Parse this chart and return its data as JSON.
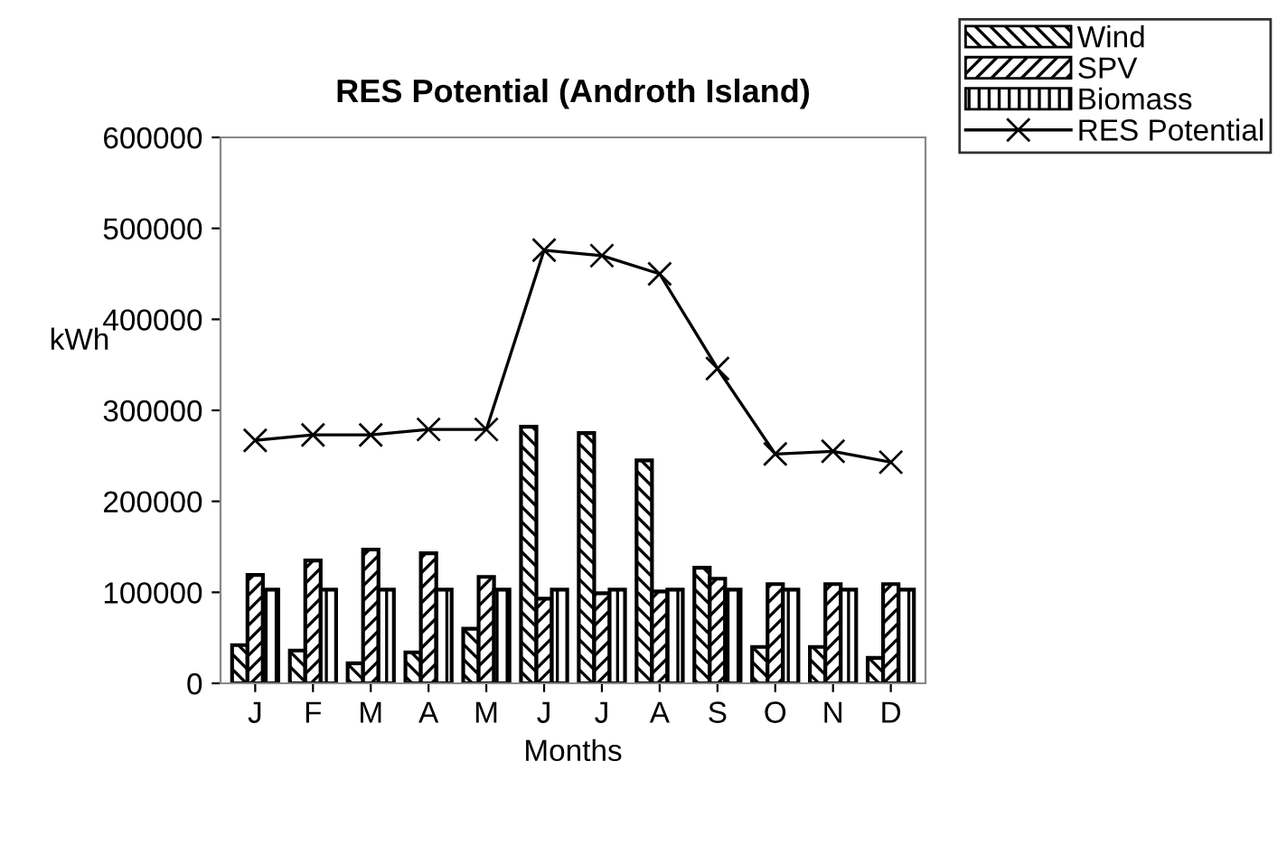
{
  "chart_data": {
    "type": "bar",
    "title": "RES Potential (Androth Island)",
    "xlabel": "Months",
    "ylabel": "kWh",
    "categories": [
      "J",
      "F",
      "M",
      "A",
      "M",
      "J",
      "J",
      "A",
      "S",
      "O",
      "N",
      "D"
    ],
    "series": [
      {
        "name": "Wind",
        "color": "#000000",
        "values": [
          42000,
          36000,
          22000,
          34000,
          60000,
          282000,
          275000,
          245000,
          127000,
          40000,
          40000,
          28000
        ]
      },
      {
        "name": "SPV",
        "color": "#000000",
        "values": [
          119000,
          135000,
          147000,
          143000,
          117000,
          93000,
          99000,
          101000,
          115000,
          109000,
          109000,
          109000
        ]
      },
      {
        "name": "Biomass",
        "color": "#000000",
        "values": [
          103000,
          103000,
          103000,
          103000,
          103000,
          103000,
          103000,
          103000,
          103000,
          103000,
          103000,
          103000
        ]
      },
      {
        "name": "RES Potential",
        "type": "line",
        "color": "#000000",
        "marker": "cross",
        "values": [
          267000,
          273000,
          273000,
          279000,
          279000,
          476000,
          470000,
          450000,
          346000,
          252000,
          255000,
          243000
        ]
      }
    ],
    "ylim": [
      0,
      600000
    ],
    "yticks": [
      0,
      100000,
      200000,
      300000,
      400000,
      500000,
      600000
    ],
    "grid": false,
    "legend": "top right"
  }
}
